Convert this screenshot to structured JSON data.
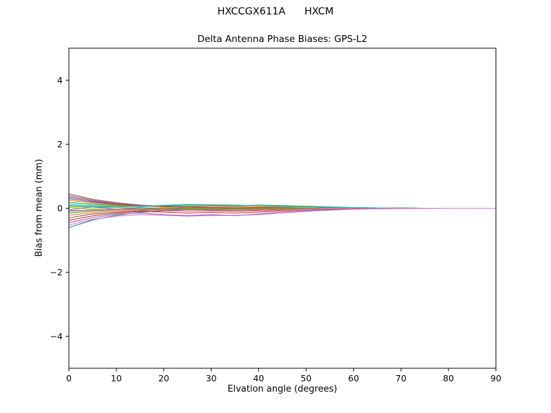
{
  "chart_data": {
    "type": "line",
    "title": "HXCCGX611A      HXCM",
    "subtitle": "Delta Antenna Phase Biases: GPS-L2",
    "xlabel": "Elvation angle (degrees)",
    "ylabel": "Bias from mean (mm)",
    "xlim": [
      0,
      90
    ],
    "ylim": [
      -5,
      5
    ],
    "x_ticks": [
      0,
      10,
      20,
      30,
      40,
      50,
      60,
      70,
      80,
      90
    ],
    "y_ticks": [
      -4,
      -2,
      0,
      2,
      4
    ],
    "grid": false,
    "legend": "none",
    "x": [
      0,
      5,
      10,
      15,
      20,
      25,
      30,
      35,
      40,
      45,
      50,
      55,
      60,
      65,
      70,
      75,
      80,
      85,
      90
    ],
    "series": [
      {
        "name": "line-01",
        "color": "#1f77b4",
        "values": [
          -0.6,
          -0.37,
          -0.22,
          -0.13,
          -0.08,
          -0.05,
          -0.03,
          -0.02,
          -0.01,
          -0.01,
          0.0,
          0.0,
          0.0,
          0.0,
          0.0,
          0.0,
          0.0,
          0.0,
          0.0
        ]
      },
      {
        "name": "line-02",
        "color": "#e377c2",
        "values": [
          -0.52,
          -0.35,
          -0.25,
          -0.2,
          -0.22,
          -0.25,
          -0.23,
          -0.22,
          -0.2,
          -0.15,
          -0.1,
          -0.06,
          -0.03,
          -0.02,
          -0.01,
          -0.01,
          0.0,
          0.0,
          0.0
        ]
      },
      {
        "name": "line-03",
        "color": "#9467bd",
        "values": [
          -0.45,
          -0.3,
          -0.18,
          -0.15,
          -0.2,
          -0.23,
          -0.2,
          -0.23,
          -0.18,
          -0.12,
          -0.08,
          -0.05,
          -0.02,
          -0.01,
          -0.01,
          0.0,
          0.0,
          0.0,
          0.0
        ]
      },
      {
        "name": "line-04",
        "color": "#d62728",
        "values": [
          -0.38,
          -0.24,
          -0.15,
          -0.1,
          -0.12,
          -0.15,
          -0.13,
          -0.15,
          -0.12,
          -0.08,
          -0.05,
          -0.03,
          -0.02,
          -0.01,
          0.0,
          0.0,
          0.0,
          0.0,
          0.0
        ]
      },
      {
        "name": "line-05",
        "color": "#8c564b",
        "values": [
          -0.3,
          -0.18,
          -0.12,
          -0.08,
          -0.06,
          -0.05,
          -0.06,
          -0.08,
          -0.06,
          -0.04,
          -0.03,
          -0.02,
          -0.01,
          0.0,
          0.0,
          0.0,
          0.0,
          0.0,
          0.0
        ]
      },
      {
        "name": "line-06",
        "color": "#ff7f0e",
        "values": [
          -0.22,
          -0.14,
          -0.08,
          -0.05,
          -0.04,
          -0.03,
          -0.04,
          -0.05,
          -0.04,
          -0.03,
          -0.02,
          -0.01,
          -0.01,
          0.0,
          0.0,
          0.0,
          0.0,
          0.0,
          0.0
        ]
      },
      {
        "name": "line-07",
        "color": "#2ca02c",
        "values": [
          -0.15,
          -0.09,
          -0.05,
          -0.03,
          -0.02,
          -0.02,
          -0.03,
          -0.02,
          -0.02,
          -0.01,
          -0.01,
          0.0,
          0.0,
          0.0,
          0.0,
          0.0,
          0.0,
          0.0,
          0.0
        ]
      },
      {
        "name": "line-08",
        "color": "#7f7f7f",
        "values": [
          -0.08,
          -0.05,
          -0.03,
          -0.02,
          -0.01,
          -0.01,
          0.0,
          -0.01,
          0.0,
          0.0,
          0.0,
          0.0,
          0.0,
          0.0,
          0.0,
          0.0,
          0.0,
          0.0,
          0.0
        ]
      },
      {
        "name": "line-09",
        "color": "#bcbd22",
        "values": [
          0.05,
          0.03,
          0.02,
          0.01,
          0.01,
          0.02,
          0.02,
          0.01,
          0.01,
          0.01,
          0.0,
          0.0,
          0.0,
          0.0,
          0.0,
          0.0,
          0.0,
          0.0,
          0.0
        ]
      },
      {
        "name": "line-10",
        "color": "#17becf",
        "values": [
          0.12,
          0.08,
          0.05,
          0.05,
          0.07,
          0.1,
          0.09,
          0.08,
          0.09,
          0.07,
          0.05,
          0.03,
          0.02,
          0.01,
          0.01,
          0.0,
          0.0,
          0.0,
          0.0
        ]
      },
      {
        "name": "line-11",
        "color": "#2ca02c",
        "values": [
          0.18,
          0.12,
          0.08,
          0.06,
          0.08,
          0.11,
          0.1,
          0.08,
          0.1,
          0.08,
          0.06,
          0.04,
          0.02,
          0.01,
          0.01,
          0.0,
          0.0,
          0.0,
          0.0
        ]
      },
      {
        "name": "line-12",
        "color": "#ff7f0e",
        "values": [
          0.25,
          0.16,
          0.1,
          0.07,
          0.05,
          0.06,
          0.07,
          0.06,
          0.05,
          0.04,
          0.03,
          0.02,
          0.01,
          0.01,
          0.0,
          0.0,
          0.0,
          0.0,
          0.0
        ]
      },
      {
        "name": "line-13",
        "color": "#1f77b4",
        "values": [
          0.3,
          0.19,
          0.12,
          0.08,
          0.05,
          0.04,
          0.03,
          0.03,
          0.02,
          0.02,
          0.01,
          0.01,
          0.01,
          0.0,
          0.0,
          0.0,
          0.0,
          0.0,
          0.0
        ]
      },
      {
        "name": "line-14",
        "color": "#d62728",
        "values": [
          0.35,
          0.22,
          0.13,
          0.08,
          0.05,
          0.04,
          0.03,
          0.02,
          0.02,
          0.01,
          0.01,
          0.01,
          0.0,
          0.0,
          0.0,
          0.0,
          0.0,
          0.0,
          0.0
        ]
      },
      {
        "name": "line-15",
        "color": "#9467bd",
        "values": [
          0.4,
          0.25,
          0.15,
          0.09,
          0.06,
          0.04,
          0.03,
          0.02,
          0.01,
          0.01,
          0.01,
          0.0,
          0.0,
          0.0,
          0.0,
          0.0,
          0.0,
          0.0,
          0.0
        ]
      },
      {
        "name": "line-16",
        "color": "#8c564b",
        "values": [
          0.45,
          0.28,
          0.17,
          0.1,
          0.06,
          0.04,
          0.02,
          0.02,
          0.01,
          0.01,
          0.0,
          0.0,
          0.0,
          0.0,
          0.0,
          0.0,
          0.0,
          0.0,
          0.0
        ]
      },
      {
        "name": "line-17",
        "color": "#bcbd22",
        "values": [
          0.02,
          -0.02,
          0.03,
          -0.01,
          0.02,
          0.01,
          -0.02,
          0.02,
          -0.01,
          0.01,
          0.02,
          -0.01,
          0.01,
          0.0,
          0.0,
          0.0,
          0.0,
          0.0,
          0.0
        ]
      },
      {
        "name": "line-18",
        "color": "#7f7f7f",
        "values": [
          -0.05,
          0.04,
          -0.03,
          0.02,
          -0.02,
          0.03,
          -0.02,
          0.01,
          -0.02,
          0.02,
          -0.01,
          0.01,
          0.0,
          0.0,
          0.0,
          0.0,
          0.0,
          0.0,
          0.0
        ]
      },
      {
        "name": "line-19",
        "color": "#17becf",
        "values": [
          0.08,
          0.05,
          0.04,
          0.06,
          0.09,
          0.12,
          0.11,
          0.1,
          0.08,
          0.06,
          0.04,
          0.03,
          0.02,
          0.01,
          0.0,
          0.0,
          0.0,
          0.0,
          0.0
        ]
      },
      {
        "name": "line-20",
        "color": "#e377c2",
        "values": [
          -0.1,
          -0.06,
          -0.04,
          -0.05,
          -0.08,
          -0.1,
          -0.09,
          -0.1,
          -0.08,
          -0.06,
          -0.04,
          -0.02,
          -0.01,
          -0.01,
          0.0,
          0.0,
          0.0,
          0.0,
          0.0
        ]
      }
    ]
  }
}
